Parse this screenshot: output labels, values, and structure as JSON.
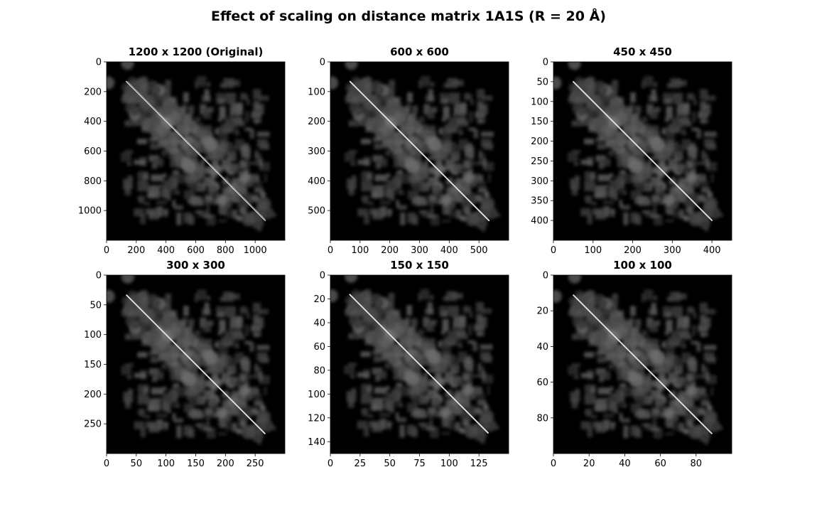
{
  "figure": {
    "title": "Effect of scaling on distance matrix 1A1S (R = 20 Å)"
  },
  "chart_data": [
    {
      "type": "heatmap",
      "title": "1200 x 1200 (Original)",
      "size": 1200,
      "content_range": [
        130,
        1070
      ],
      "xticks": [
        0,
        200,
        400,
        600,
        800,
        1000
      ],
      "yticks": [
        0,
        200,
        400,
        600,
        800,
        1000
      ],
      "xlim": [
        0,
        1200
      ],
      "ylim": [
        1200,
        0
      ],
      "xlabel": "",
      "ylabel": "",
      "colormap": "gray",
      "background": "#000000"
    },
    {
      "type": "heatmap",
      "title": "600 x 600",
      "size": 600,
      "content_range": [
        65,
        535
      ],
      "xticks": [
        0,
        100,
        200,
        300,
        400,
        500
      ],
      "yticks": [
        0,
        100,
        200,
        300,
        400,
        500
      ],
      "xlim": [
        0,
        600
      ],
      "ylim": [
        600,
        0
      ],
      "xlabel": "",
      "ylabel": "",
      "colormap": "gray",
      "background": "#000000"
    },
    {
      "type": "heatmap",
      "title": "450 x 450",
      "size": 450,
      "content_range": [
        49,
        401
      ],
      "xticks": [
        0,
        100,
        200,
        300,
        400
      ],
      "yticks": [
        0,
        50,
        100,
        150,
        200,
        250,
        300,
        350,
        400
      ],
      "xlim": [
        0,
        450
      ],
      "ylim": [
        450,
        0
      ],
      "xlabel": "",
      "ylabel": "",
      "colormap": "gray",
      "background": "#000000"
    },
    {
      "type": "heatmap",
      "title": "300 x 300",
      "size": 300,
      "content_range": [
        33,
        267
      ],
      "xticks": [
        0,
        50,
        100,
        150,
        200,
        250
      ],
      "yticks": [
        0,
        50,
        100,
        150,
        200,
        250
      ],
      "xlim": [
        0,
        300
      ],
      "ylim": [
        300,
        0
      ],
      "xlabel": "",
      "ylabel": "",
      "colormap": "gray",
      "background": "#000000"
    },
    {
      "type": "heatmap",
      "title": "150 x 150",
      "size": 150,
      "content_range": [
        16,
        133
      ],
      "xticks": [
        0,
        25,
        50,
        75,
        100,
        125
      ],
      "yticks": [
        0,
        20,
        40,
        60,
        80,
        100,
        120,
        140
      ],
      "xlim": [
        0,
        150
      ],
      "ylim": [
        150,
        0
      ],
      "xlabel": "",
      "ylabel": "",
      "colormap": "gray",
      "background": "#000000"
    },
    {
      "type": "heatmap",
      "title": "100 x 100",
      "size": 100,
      "content_range": [
        11,
        89
      ],
      "xticks": [
        0,
        20,
        40,
        60,
        80
      ],
      "yticks": [
        0,
        20,
        40,
        60,
        80
      ],
      "xlim": [
        0,
        100
      ],
      "ylim": [
        100,
        0
      ],
      "xlabel": "",
      "ylabel": "",
      "colormap": "gray",
      "background": "#000000"
    }
  ]
}
